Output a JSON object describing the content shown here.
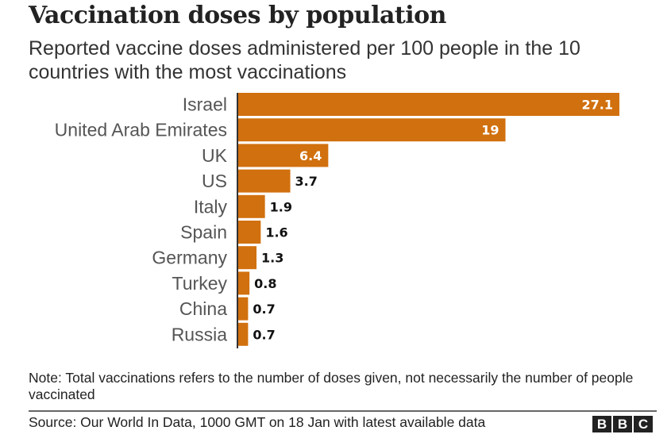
{
  "chart_data": {
    "type": "bar",
    "orientation": "horizontal",
    "title": "Vaccination doses by population",
    "subtitle": "Reported vaccine doses administered per 100 people in the 10 countries with the most vaccinations",
    "categories": [
      "Israel",
      "United Arab Emirates",
      "UK",
      "US",
      "Italy",
      "Spain",
      "Germany",
      "Turkey",
      "China",
      "Russia"
    ],
    "values": [
      27.1,
      19,
      6.4,
      3.7,
      1.9,
      1.6,
      1.3,
      0.8,
      0.7,
      0.7
    ],
    "value_labels": [
      "27.1",
      "19",
      "6.4",
      "3.7",
      "1.9",
      "1.6",
      "1.3",
      "0.8",
      "0.7",
      "0.7"
    ],
    "xlabel": "",
    "ylabel": "",
    "xlim": [
      0,
      27.1
    ],
    "grid": false,
    "legend": "none",
    "bar_color": "#d1700e",
    "note": "Note: Total vaccinations refers to the number of doses given, not necessarily the number of people vaccinated",
    "source": "Source: Our World In Data, 1000 GMT on 18 Jan with latest available data"
  },
  "branding": {
    "logo_letters": [
      "B",
      "B",
      "C"
    ]
  }
}
